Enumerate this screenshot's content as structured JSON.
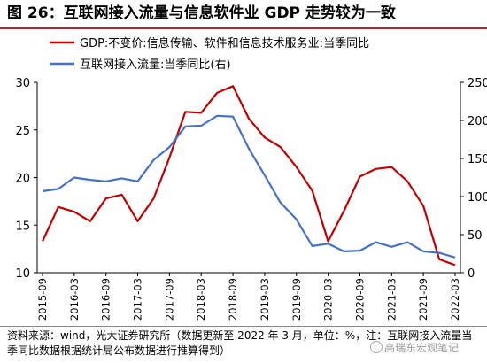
{
  "title": "图 26：互联网接入流量与信息软件业 GDP 走势较为一致",
  "source": "资料来源：wind，光大证券研究所（数据更新至 2022 年 3 月，单位：%，注：互联网接入流量当季同比数据根据统计局公布数据进行推算得到）",
  "watermark": "高瑞东宏观笔记",
  "chart_data": {
    "type": "line",
    "categories": [
      "2015-09",
      "2015-12",
      "2016-03",
      "2016-06",
      "2016-09",
      "2016-12",
      "2017-03",
      "2017-06",
      "2017-09",
      "2017-12",
      "2018-03",
      "2018-06",
      "2018-09",
      "2018-12",
      "2019-03",
      "2019-06",
      "2019-09",
      "2019-12",
      "2020-03",
      "2020-06",
      "2020-09",
      "2020-12",
      "2021-03",
      "2021-06",
      "2021-09",
      "2021-12",
      "2022-03"
    ],
    "tick_labels": [
      "2015-09",
      "2016-03",
      "2016-09",
      "2017-03",
      "2017-09",
      "2018-03",
      "2018-09",
      "2019-03",
      "2019-09",
      "2020-03",
      "2020-09",
      "2021-03",
      "2021-09",
      "2022-03"
    ],
    "series": [
      {
        "name": "GDP:不变价:信息传输、软件和信息技术服务业:当季同比",
        "axis": "left",
        "color": "#c00000",
        "values": [
          13.3,
          16.9,
          16.4,
          15.4,
          17.8,
          18.2,
          15.4,
          17.8,
          22.1,
          26.9,
          26.8,
          28.9,
          29.6,
          26.2,
          24.2,
          23.2,
          21.1,
          18.6,
          13.3,
          16.5,
          20.1,
          20.9,
          21.1,
          19.6,
          17.0,
          11.4,
          10.8
        ]
      },
      {
        "name": "互联网接入流量:当季同比(右)",
        "axis": "right",
        "color": "#4472c4",
        "values": [
          107,
          110,
          125,
          122,
          120,
          124,
          120,
          148,
          165,
          192,
          193,
          206,
          205,
          163,
          128,
          92,
          70,
          35,
          38,
          28,
          29,
          40,
          34,
          40,
          28,
          26,
          20
        ]
      }
    ],
    "y_left": {
      "min": 10,
      "max": 30,
      "ticks": [
        10,
        15,
        20,
        25,
        30
      ]
    },
    "y_right": {
      "min": 0,
      "max": 250,
      "ticks": [
        0,
        50,
        100,
        150,
        200,
        250
      ]
    },
    "legend_position": "top-left",
    "grid": false
  }
}
